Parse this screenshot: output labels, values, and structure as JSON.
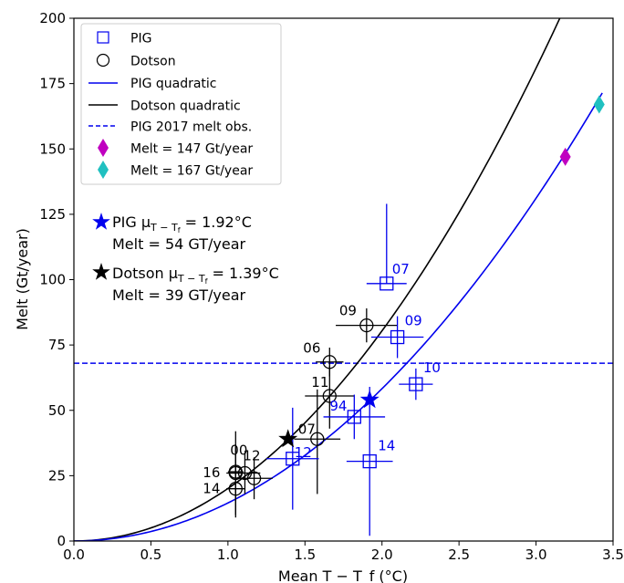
{
  "chart_data": {
    "type": "scatter",
    "xlabel": "Mean T − T_f (°C)",
    "ylabel": "Melt (Gt/year)",
    "xlim": [
      0.0,
      3.5
    ],
    "ylim": [
      0,
      200
    ],
    "xticks": [
      "0.0",
      "0.5",
      "1.0",
      "1.5",
      "2.0",
      "2.5",
      "3.0",
      "3.5"
    ],
    "yticks": [
      "0",
      "25",
      "50",
      "75",
      "100",
      "125",
      "150",
      "175",
      "200"
    ],
    "grid": false,
    "legend_position": "top-left",
    "legend": [
      "PIG",
      "Dotson",
      "PIG quadratic",
      "Dotson quadratic",
      "PIG 2017 melt obs.",
      "Melt = 147 Gt/year",
      "Melt = 167 Gt/year"
    ],
    "colors": {
      "pig": "#0000ee",
      "dotson": "#000000",
      "melt147": "#c000c0",
      "melt167": "#20c0c0"
    },
    "series": [
      {
        "name": "PIG",
        "marker": "square",
        "points": [
          {
            "label": "07",
            "x": 2.03,
            "y": 98.5,
            "xerr": 0.13,
            "yerr_low": 98.5,
            "yerr_high": 129
          },
          {
            "label": "09",
            "x": 2.1,
            "y": 78,
            "xerr": 0.17,
            "yerr_low": 70,
            "yerr_high": 86
          },
          {
            "label": "10",
            "x": 2.22,
            "y": 60,
            "xerr": 0.11,
            "yerr_low": 54,
            "yerr_high": 66
          },
          {
            "label": "94",
            "x": 1.82,
            "y": 47.5,
            "xerr": 0.2,
            "yerr_low": 39,
            "yerr_high": 56
          },
          {
            "label": "12",
            "x": 1.42,
            "y": 31.5,
            "xerr": 0.17,
            "yerr_low": 12,
            "yerr_high": 51
          },
          {
            "label": "14",
            "x": 1.92,
            "y": 30.5,
            "xerr": 0.15,
            "yerr_low": 2,
            "yerr_high": 59
          }
        ]
      },
      {
        "name": "Dotson",
        "marker": "circle",
        "points": [
          {
            "label": "09",
            "x": 1.9,
            "y": 82.5,
            "xerr": 0.2,
            "yerr_low": 76,
            "yerr_high": 89
          },
          {
            "label": "06",
            "x": 1.66,
            "y": 68.5,
            "xerr": 0.09,
            "yerr_low": 63,
            "yerr_high": 74
          },
          {
            "label": "11",
            "x": 1.66,
            "y": 55.5,
            "xerr": 0.16,
            "yerr_low": 43,
            "yerr_high": 67
          },
          {
            "label": "07",
            "x": 1.58,
            "y": 39,
            "xerr": 0.15,
            "yerr_low": 18,
            "yerr_high": 58
          },
          {
            "label": "00",
            "x": 1.05,
            "y": 26,
            "xerr": 0.06,
            "yerr_low": 10,
            "yerr_high": 42
          },
          {
            "label": "12",
            "x": 1.11,
            "y": 26,
            "xerr": 0.1,
            "yerr_low": 18,
            "yerr_high": 34
          },
          {
            "label": "16",
            "x": 1.05,
            "y": 26.5,
            "xerr": 0.05,
            "yerr_low": 16,
            "yerr_high": 37
          },
          {
            "label": "14",
            "x": 1.05,
            "y": 20,
            "xerr": 0.06,
            "yerr_low": 9,
            "yerr_high": 31
          },
          {
            "label": "",
            "x": 1.17,
            "y": 24,
            "xerr": 0.12,
            "yerr_low": 16,
            "yerr_high": 32
          }
        ]
      },
      {
        "name": "PIG quadratic",
        "style": "line",
        "coef_a": 14.57,
        "x_end": 3.43
      },
      {
        "name": "Dotson quadratic",
        "style": "line",
        "coef_a": 20.1,
        "x_end": 3.2
      },
      {
        "name": "PIG 2017 melt obs.",
        "style": "dashed-hline",
        "y": 68
      },
      {
        "name": "Melt = 147 Gt/year",
        "marker": "diamond",
        "x": 3.19,
        "y": 147
      },
      {
        "name": "Melt = 167 Gt/year",
        "marker": "diamond",
        "x": 3.41,
        "y": 167
      }
    ],
    "stars": [
      {
        "series": "PIG",
        "x": 1.92,
        "y": 54
      },
      {
        "series": "Dotson",
        "x": 1.39,
        "y": 39
      }
    ],
    "annotations": [
      {
        "line1_prefix": "PIG μ",
        "subscript": "T − T",
        "subsub": "f",
        "line1_suffix": " = 1.92°C",
        "line2": "Melt = 54 GT/year"
      },
      {
        "line1_prefix": "Dotson μ",
        "subscript": "T − T",
        "subsub": "f",
        "line1_suffix": " = 1.39°C",
        "line2": "Melt = 39 GT/year"
      }
    ]
  }
}
